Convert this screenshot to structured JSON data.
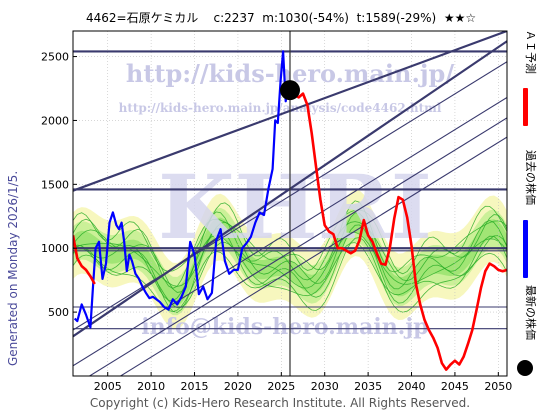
{
  "header": {
    "title": "4462=石原ケミカル    c:2237  m:1030(-54%)  t:1589(-29%)  ★★☆"
  },
  "side_label": "Generated on Monday 2026/1/5.",
  "footer": {
    "copyright": "Copyright (c) Kids-Hero Research Institute. All Rights Reserved."
  },
  "watermarks": {
    "url_main": "http://kids-hero.main.jp/",
    "url_sub": "http://kids-hero.main.jp/analysis/code4462.html",
    "logo": "KHRI",
    "email": "info@kids-hero.main.jp"
  },
  "legend": [
    {
      "label": "ＡＩ予測",
      "color": "#ff0000",
      "icon": "red-line-icon"
    },
    {
      "label": "過去の株価",
      "color": "#0000ff",
      "icon": "blue-line-icon"
    },
    {
      "label": "最新の株価",
      "color": "#000000",
      "icon": "black-dot-icon"
    }
  ],
  "chart_data": {
    "type": "line",
    "title": "4462=石原ケミカル    c:2237  m:1030(-54%)  t:1589(-29%)  ★★☆",
    "xlim": [
      2001,
      2051
    ],
    "ylim": [
      0,
      2700
    ],
    "xticks": [
      2005,
      2010,
      2015,
      2020,
      2025,
      2030,
      2035,
      2040,
      2045,
      2050
    ],
    "yticks": [
      500,
      1000,
      1500,
      2000,
      2500
    ],
    "grid": true,
    "latest": {
      "x": 2026.0,
      "y": 2237
    },
    "horizontal_lines": [
      {
        "y": 2540,
        "bold": true
      },
      {
        "y": 1460,
        "bold": true
      },
      {
        "y": 1000,
        "bold": true
      },
      {
        "y": 980,
        "bold": false
      },
      {
        "y": 540,
        "bold": false
      },
      {
        "y": 370,
        "bold": false
      }
    ],
    "vertical_line_x": 2026,
    "trend_lines": [
      {
        "x": [
          2001,
          2051
        ],
        "y": [
          1450,
          2700
        ],
        "bold": true
      },
      {
        "x": [
          2001,
          2051
        ],
        "y": [
          310,
          2620
        ],
        "bold": true
      },
      {
        "x": [
          2001,
          2051
        ],
        "y": [
          360,
          2460
        ],
        "bold": false
      },
      {
        "x": [
          2001,
          2051
        ],
        "y": [
          80,
          2180
        ],
        "bold": false
      },
      {
        "x": [
          2001,
          2051
        ],
        "y": [
          -80,
          2020
        ],
        "bold": false
      },
      {
        "x": [
          2001,
          2051
        ],
        "y": [
          -230,
          1870
        ],
        "bold": false
      }
    ],
    "series": [
      {
        "name": "過去の株価",
        "color": "#0000ff",
        "x": [
          2001.2,
          2001.5,
          2002.0,
          2002.5,
          2003.0,
          2003.3,
          2003.6,
          2004.0,
          2004.4,
          2004.8,
          2005.2,
          2005.6,
          2006.0,
          2006.3,
          2006.6,
          2006.9,
          2007.2,
          2007.5,
          2007.8,
          2008.2,
          2008.6,
          2009.0,
          2009.4,
          2009.8,
          2010.2,
          2010.6,
          2011.0,
          2011.5,
          2012.0,
          2012.5,
          2013.0,
          2013.5,
          2014.0,
          2014.5,
          2015.0,
          2015.5,
          2016.0,
          2016.5,
          2017.0,
          2017.5,
          2018.0,
          2018.5,
          2019.0,
          2019.5,
          2020.0,
          2020.5,
          2021.0,
          2021.5,
          2022.0,
          2022.5,
          2023.0,
          2023.5,
          2024.0,
          2024.3,
          2024.6,
          2024.9,
          2025.2,
          2025.5,
          2025.8,
          2026.0
        ],
        "y": [
          450,
          430,
          560,
          480,
          380,
          700,
          1000,
          1050,
          760,
          880,
          1200,
          1280,
          1180,
          1150,
          1200,
          1050,
          820,
          950,
          900,
          800,
          760,
          700,
          650,
          610,
          620,
          600,
          580,
          540,
          520,
          600,
          560,
          620,
          700,
          1050,
          950,
          640,
          700,
          600,
          650,
          1060,
          1150,
          900,
          800,
          830,
          830,
          1000,
          1040,
          1090,
          1200,
          1280,
          1260,
          1460,
          1620,
          2000,
          1980,
          2300,
          2540,
          2150,
          2280,
          2237
        ]
      },
      {
        "name": "ＡＩ予測",
        "color": "#ff0000",
        "x": [
          2001.0,
          2001.5,
          2002.0,
          2002.5,
          2003.0,
          2003.5,
          2026.0,
          2026.5,
          2027.0,
          2027.5,
          2028.0,
          2028.5,
          2029.0,
          2029.5,
          2030.0,
          2030.5,
          2031.0,
          2031.5,
          2032.0,
          2032.5,
          2033.0,
          2033.5,
          2034.0,
          2034.5,
          2035.0,
          2035.5,
          2036.0,
          2036.5,
          2037.0,
          2037.5,
          2038.0,
          2038.5,
          2039.0,
          2039.5,
          2040.0,
          2040.5,
          2041.0,
          2041.5,
          2042.0,
          2042.5,
          2043.0,
          2043.5,
          2044.0,
          2044.5,
          2045.0,
          2045.5,
          2046.0,
          2046.5,
          2047.0,
          2047.5,
          2048.0,
          2048.5,
          2049.0,
          2049.5,
          2050.0,
          2050.5,
          2051.0
        ],
        "y": [
          1100,
          920,
          860,
          830,
          780,
          720,
          2237,
          2200,
          2180,
          2210,
          2120,
          1900,
          1640,
          1380,
          1180,
          1130,
          1110,
          1000,
          1000,
          980,
          960,
          980,
          1060,
          1220,
          1100,
          1050,
          960,
          880,
          870,
          1000,
          1230,
          1400,
          1380,
          1240,
          1020,
          720,
          560,
          440,
          360,
          300,
          220,
          100,
          50,
          90,
          120,
          90,
          150,
          250,
          360,
          520,
          690,
          820,
          880,
          860,
          830,
          820,
          830
        ]
      }
    ]
  }
}
